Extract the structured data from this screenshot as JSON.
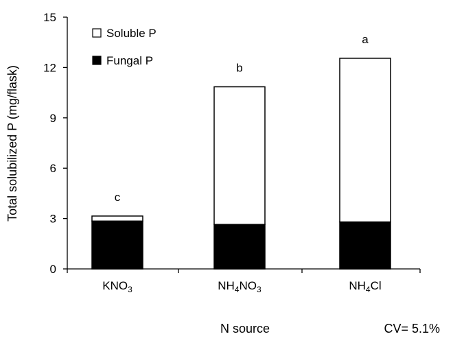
{
  "chart_data": {
    "type": "bar",
    "stacked": true,
    "categories": [
      {
        "base": "KNO",
        "sub": "3",
        "tail": ""
      },
      {
        "base": "NH",
        "sub": "4",
        "mid": "NO",
        "sub2": "3"
      },
      {
        "base": "NH",
        "sub": "4",
        "mid": "Cl",
        "sub2": ""
      }
    ],
    "category_text": [
      "KNO3",
      "NH4NO3",
      "NH4Cl"
    ],
    "series": [
      {
        "name": "Fungal P",
        "color": "#000000",
        "values": [
          2.85,
          2.65,
          2.8
        ]
      },
      {
        "name": "Soluble P",
        "color": "#ffffff",
        "values": [
          0.3,
          8.2,
          9.75
        ]
      }
    ],
    "significance_letters": [
      "c",
      "b",
      "a"
    ],
    "xlabel": "N source",
    "ylabel": "Total solubilized P (mg/flask)",
    "ylim": [
      0,
      15
    ],
    "yticks": [
      0,
      3,
      6,
      9,
      12,
      15
    ],
    "grid": false,
    "legend_position": "top-left",
    "annotation": "CV= 5.1%"
  }
}
